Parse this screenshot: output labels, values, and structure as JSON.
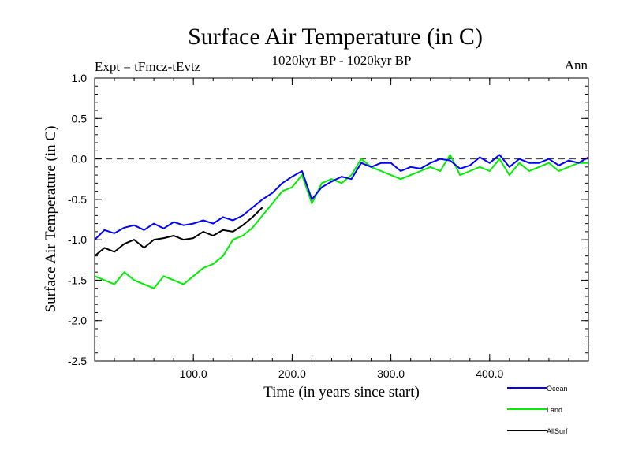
{
  "chart_data": {
    "type": "line",
    "title": "Surface Air Temperature (in C)",
    "subtitle": "1020kyr BP - 1020kyr BP",
    "experiment_label": "Expt = tFmcz-tEvtz",
    "season_label": "Ann",
    "xlabel": "Time (in years since start)",
    "ylabel": "Surface Air Temperature (in C)",
    "xlim": [
      0,
      500
    ],
    "ylim": [
      -2.5,
      1.0
    ],
    "x_ticks": [
      100,
      200,
      300,
      400
    ],
    "x_tick_labels": [
      "100.0",
      "200.0",
      "300.0",
      "400.0"
    ],
    "y_ticks": [
      -2.5,
      -2.0,
      -1.5,
      -1.0,
      -0.5,
      0.0,
      0.5,
      1.0
    ],
    "y_tick_labels": [
      "-2.5",
      "-2.0",
      "-1.5",
      "-1.0",
      "-0.5",
      "0.0",
      "0.5",
      "1.0"
    ],
    "reference_line": 0.0,
    "series": [
      {
        "name": "Ocean",
        "color": "#0000ff",
        "x": [
          0,
          10,
          20,
          30,
          40,
          50,
          60,
          70,
          80,
          90,
          100,
          110,
          120,
          130,
          140,
          150,
          160,
          170,
          180,
          190,
          200,
          210,
          220,
          230,
          240,
          250,
          260,
          270,
          280,
          290,
          300,
          310,
          320,
          330,
          340,
          350,
          360,
          370,
          380,
          390,
          400,
          410,
          420,
          430,
          440,
          450,
          460,
          470,
          480,
          490,
          500
        ],
        "values": [
          -1.0,
          -0.88,
          -0.92,
          -0.85,
          -0.82,
          -0.88,
          -0.8,
          -0.86,
          -0.78,
          -0.82,
          -0.8,
          -0.76,
          -0.8,
          -0.72,
          -0.76,
          -0.7,
          -0.6,
          -0.5,
          -0.42,
          -0.3,
          -0.22,
          -0.15,
          -0.5,
          -0.35,
          -0.28,
          -0.22,
          -0.25,
          -0.05,
          -0.1,
          -0.05,
          -0.05,
          -0.15,
          -0.1,
          -0.12,
          -0.05,
          0.0,
          -0.02,
          -0.12,
          -0.08,
          0.02,
          -0.05,
          0.05,
          -0.1,
          0.0,
          -0.05,
          -0.05,
          0.0,
          -0.08,
          -0.02,
          -0.05,
          0.02
        ]
      },
      {
        "name": "Land",
        "color": "#00ee00",
        "x": [
          0,
          10,
          20,
          30,
          40,
          50,
          60,
          70,
          80,
          90,
          100,
          110,
          120,
          130,
          140,
          150,
          160,
          170,
          180,
          190,
          200,
          210,
          220,
          230,
          240,
          250,
          260,
          270,
          280,
          290,
          300,
          310,
          320,
          330,
          340,
          350,
          360,
          370,
          380,
          390,
          400,
          410,
          420,
          430,
          440,
          450,
          460,
          470,
          480,
          490,
          500
        ],
        "values": [
          -1.45,
          -1.5,
          -1.55,
          -1.4,
          -1.5,
          -1.55,
          -1.6,
          -1.45,
          -1.5,
          -1.55,
          -1.45,
          -1.35,
          -1.3,
          -1.2,
          -1.0,
          -0.95,
          -0.85,
          -0.7,
          -0.55,
          -0.4,
          -0.35,
          -0.2,
          -0.55,
          -0.3,
          -0.25,
          -0.3,
          -0.2,
          0.0,
          -0.1,
          -0.15,
          -0.2,
          -0.25,
          -0.2,
          -0.15,
          -0.1,
          -0.15,
          0.05,
          -0.2,
          -0.15,
          -0.1,
          -0.15,
          0.0,
          -0.2,
          -0.05,
          -0.15,
          -0.1,
          -0.05,
          -0.15,
          -0.1,
          -0.05,
          -0.05
        ]
      },
      {
        "name": "AllSurf",
        "color": "#000000",
        "x": [
          0,
          10,
          20,
          30,
          40,
          50,
          60,
          70,
          80,
          90,
          100,
          110,
          120,
          130,
          140,
          150,
          160,
          170
        ],
        "values": [
          -1.2,
          -1.1,
          -1.15,
          -1.05,
          -1.0,
          -1.1,
          -1.0,
          -0.98,
          -0.95,
          -1.0,
          -0.98,
          -0.9,
          -0.95,
          -0.88,
          -0.9,
          -0.82,
          -0.72,
          -0.6
        ]
      }
    ]
  }
}
